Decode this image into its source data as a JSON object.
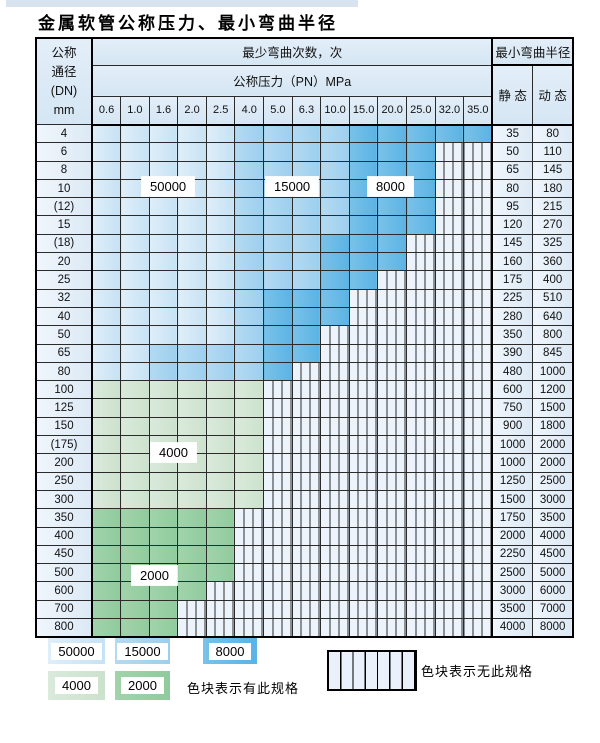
{
  "title": "金属软管公称压力、最小弯曲半径",
  "chart_data": {
    "type": "table",
    "title": "金属软管公称压力、最小弯曲半径",
    "headers": {
      "dn_lines": [
        "公称",
        "通径",
        "(DN)",
        "mm"
      ],
      "bend_cycles": "最少弯曲次数，次",
      "pressure": "公称压力（PN）MPa",
      "radius": "最小弯曲半径",
      "static": "静 态",
      "dynamic": "动 态"
    },
    "pressure_columns": [
      "0.6",
      "1.0",
      "1.6",
      "2.0",
      "2.5",
      "4.0",
      "5.0",
      "6.3",
      "10.0",
      "15.0",
      "20.0",
      "25.0",
      "32.0",
      "35.0"
    ],
    "band_labels": {
      "b1": "50000",
      "b2": "15000",
      "b3": "8000",
      "g1": "4000",
      "g2": "2000"
    },
    "rows": [
      {
        "dn": "4",
        "static": "35",
        "dynamic": "80",
        "bands": [
          [
            "b1",
            5
          ],
          [
            "b2",
            4
          ],
          [
            "b3",
            5
          ]
        ]
      },
      {
        "dn": "6",
        "static": "50",
        "dynamic": "110",
        "bands": [
          [
            "b1",
            5
          ],
          [
            "b2",
            4
          ],
          [
            "b3",
            3
          ],
          [
            "x",
            2
          ]
        ]
      },
      {
        "dn": "8",
        "static": "65",
        "dynamic": "145",
        "bands": [
          [
            "b1",
            5
          ],
          [
            "b2",
            4
          ],
          [
            "b3",
            3
          ],
          [
            "x",
            2
          ]
        ]
      },
      {
        "dn": "10",
        "static": "80",
        "dynamic": "180",
        "bands": [
          [
            "b1",
            5
          ],
          [
            "b2",
            4
          ],
          [
            "b3",
            3
          ],
          [
            "x",
            2
          ]
        ]
      },
      {
        "dn": "(12)",
        "static": "95",
        "dynamic": "215",
        "bands": [
          [
            "b1",
            5
          ],
          [
            "b2",
            4
          ],
          [
            "b3",
            3
          ],
          [
            "x",
            2
          ]
        ]
      },
      {
        "dn": "15",
        "static": "120",
        "dynamic": "270",
        "bands": [
          [
            "b1",
            5
          ],
          [
            "b2",
            4
          ],
          [
            "b3",
            3
          ],
          [
            "x",
            2
          ]
        ]
      },
      {
        "dn": "(18)",
        "static": "145",
        "dynamic": "325",
        "bands": [
          [
            "b1",
            5
          ],
          [
            "b2",
            3
          ],
          [
            "b3",
            3
          ],
          [
            "x",
            3
          ]
        ]
      },
      {
        "dn": "20",
        "static": "160",
        "dynamic": "360",
        "bands": [
          [
            "b1",
            5
          ],
          [
            "b2",
            3
          ],
          [
            "b3",
            3
          ],
          [
            "x",
            3
          ]
        ]
      },
      {
        "dn": "25",
        "static": "175",
        "dynamic": "400",
        "bands": [
          [
            "b1",
            5
          ],
          [
            "b2",
            3
          ],
          [
            "b3",
            2
          ],
          [
            "x",
            4
          ]
        ]
      },
      {
        "dn": "32",
        "static": "225",
        "dynamic": "510",
        "bands": [
          [
            "b1",
            5
          ],
          [
            "b2",
            1
          ],
          [
            "b3",
            3
          ],
          [
            "x",
            5
          ]
        ]
      },
      {
        "dn": "40",
        "static": "280",
        "dynamic": "640",
        "bands": [
          [
            "b1",
            5
          ],
          [
            "b2",
            1
          ],
          [
            "b3",
            3
          ],
          [
            "x",
            5
          ]
        ]
      },
      {
        "dn": "50",
        "static": "350",
        "dynamic": "800",
        "bands": [
          [
            "b1",
            5
          ],
          [
            "b2",
            1
          ],
          [
            "b3",
            2
          ],
          [
            "x",
            6
          ]
        ]
      },
      {
        "dn": "65",
        "static": "390",
        "dynamic": "845",
        "bands": [
          [
            "b1",
            2
          ],
          [
            "b2",
            4
          ],
          [
            "b3",
            2
          ],
          [
            "x",
            6
          ]
        ]
      },
      {
        "dn": "80",
        "static": "480",
        "dynamic": "1000",
        "bands": [
          [
            "b1",
            2
          ],
          [
            "b2",
            4
          ],
          [
            "b3",
            1
          ],
          [
            "x",
            7
          ]
        ]
      },
      {
        "dn": "100",
        "static": "600",
        "dynamic": "1200",
        "bands": [
          [
            "g1",
            6
          ],
          [
            "x",
            8
          ]
        ]
      },
      {
        "dn": "125",
        "static": "750",
        "dynamic": "1500",
        "bands": [
          [
            "g1",
            6
          ],
          [
            "x",
            8
          ]
        ]
      },
      {
        "dn": "150",
        "static": "900",
        "dynamic": "1800",
        "bands": [
          [
            "g1",
            6
          ],
          [
            "x",
            8
          ]
        ]
      },
      {
        "dn": "(175)",
        "static": "1000",
        "dynamic": "2000",
        "bands": [
          [
            "g1",
            6
          ],
          [
            "x",
            8
          ]
        ]
      },
      {
        "dn": "200",
        "static": "1000",
        "dynamic": "2000",
        "bands": [
          [
            "g1",
            6
          ],
          [
            "x",
            8
          ]
        ]
      },
      {
        "dn": "250",
        "static": "1250",
        "dynamic": "2500",
        "bands": [
          [
            "g1",
            6
          ],
          [
            "x",
            8
          ]
        ]
      },
      {
        "dn": "300",
        "static": "1500",
        "dynamic": "3000",
        "bands": [
          [
            "g1",
            6
          ],
          [
            "x",
            8
          ]
        ]
      },
      {
        "dn": "350",
        "static": "1750",
        "dynamic": "3500",
        "bands": [
          [
            "g2",
            5
          ],
          [
            "x",
            9
          ]
        ]
      },
      {
        "dn": "400",
        "static": "2000",
        "dynamic": "4000",
        "bands": [
          [
            "g2",
            5
          ],
          [
            "x",
            9
          ]
        ]
      },
      {
        "dn": "450",
        "static": "2250",
        "dynamic": "4500",
        "bands": [
          [
            "g2",
            5
          ],
          [
            "x",
            9
          ]
        ]
      },
      {
        "dn": "500",
        "static": "2500",
        "dynamic": "5000",
        "bands": [
          [
            "g2",
            5
          ],
          [
            "x",
            9
          ]
        ]
      },
      {
        "dn": "600",
        "static": "3000",
        "dynamic": "6000",
        "bands": [
          [
            "g2",
            4
          ],
          [
            "x",
            10
          ]
        ]
      },
      {
        "dn": "700",
        "static": "3500",
        "dynamic": "7000",
        "bands": [
          [
            "g2",
            3
          ],
          [
            "x",
            11
          ]
        ]
      },
      {
        "dn": "800",
        "static": "4000",
        "dynamic": "8000",
        "bands": [
          [
            "g2",
            3
          ],
          [
            "x",
            11
          ]
        ]
      }
    ]
  },
  "legend": {
    "items": [
      {
        "label": "50000",
        "band": "b1"
      },
      {
        "label": "15000",
        "band": "b2"
      },
      {
        "label": "8000",
        "band": "b3"
      },
      {
        "label": "4000",
        "band": "g1"
      },
      {
        "label": "2000",
        "band": "g2"
      }
    ],
    "has_spec_text": "色块表示有此规格",
    "no_spec_text": "色块表示无此规格"
  },
  "colors": {
    "band_50000": "#cde5f5",
    "band_15000": "#a3d3ef",
    "band_8000": "#66b9e6",
    "band_4000": "#d2e6d3",
    "band_2000": "#99cfa4",
    "no_spec_bg": "#edf3fb",
    "header_bg": "#dcebf6",
    "grid_line": "#2b2b2b"
  }
}
